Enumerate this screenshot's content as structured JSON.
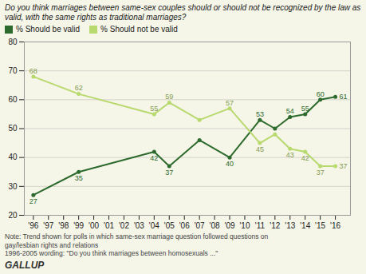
{
  "chart_data": {
    "type": "line",
    "title": "Do you think marriages between same-sex couples should or should not be recognized by the law as valid, with the same rights as traditional marriages?",
    "x": [
      1996,
      1999,
      2004,
      2005,
      2007,
      2009,
      2011,
      2012,
      2013,
      2014,
      2015,
      2016
    ],
    "series": [
      {
        "name": "% Should be valid",
        "color": "#2d6a2d",
        "values": [
          27,
          35,
          42,
          37,
          46,
          40,
          53,
          50,
          54,
          55,
          60,
          61
        ],
        "value_labels": [
          "27",
          "35",
          "42",
          "37",
          null,
          "40",
          "53",
          null,
          "54",
          "55",
          "60",
          "61"
        ]
      },
      {
        "name": "% Should not be valid",
        "color": "#b8d96e",
        "values": [
          68,
          62,
          55,
          59,
          53,
          57,
          45,
          48,
          43,
          42,
          37,
          37
        ],
        "value_labels": [
          "68",
          "62",
          "55",
          "59",
          null,
          "57",
          "45",
          null,
          "43",
          "42",
          "37",
          "37"
        ]
      }
    ],
    "xlim": [
      1995.4,
      2017.0
    ],
    "xticks": [
      {
        "value": 1996,
        "label": "'96"
      },
      {
        "value": 1997,
        "label": "'97"
      },
      {
        "value": 1998,
        "label": "'98"
      },
      {
        "value": 1999,
        "label": "'99"
      },
      {
        "value": 2000,
        "label": "'00"
      },
      {
        "value": 2001,
        "label": "'01"
      },
      {
        "value": 2002,
        "label": "'02"
      },
      {
        "value": 2003,
        "label": "'03"
      },
      {
        "value": 2004,
        "label": "'04"
      },
      {
        "value": 2005,
        "label": "'05"
      },
      {
        "value": 2006,
        "label": "'06"
      },
      {
        "value": 2007,
        "label": "'07"
      },
      {
        "value": 2008,
        "label": "'08"
      },
      {
        "value": 2009,
        "label": "'09"
      },
      {
        "value": 2010,
        "label": "'10"
      },
      {
        "value": 2011,
        "label": "'11"
      },
      {
        "value": 2012,
        "label": "'12"
      },
      {
        "value": 2013,
        "label": "'13"
      },
      {
        "value": 2014,
        "label": "'14"
      },
      {
        "value": 2015,
        "label": "'15"
      },
      {
        "value": 2016,
        "label": "'16"
      }
    ],
    "ylim": [
      20,
      80
    ],
    "yticks": [
      20,
      30,
      40,
      50,
      60,
      70,
      80
    ],
    "grid": true,
    "legend": "top",
    "marker": "circle",
    "data_labels": true,
    "notes": [
      "Note: Trend shown for polls in which same-sex marriage question followed questions on",
      "gay/lesbian rights and relations",
      "1996-2005 wording: \"Do you think marriages between homosexuals ...\""
    ],
    "source": "GALLUP",
    "background_color": "#f5f5e8"
  }
}
